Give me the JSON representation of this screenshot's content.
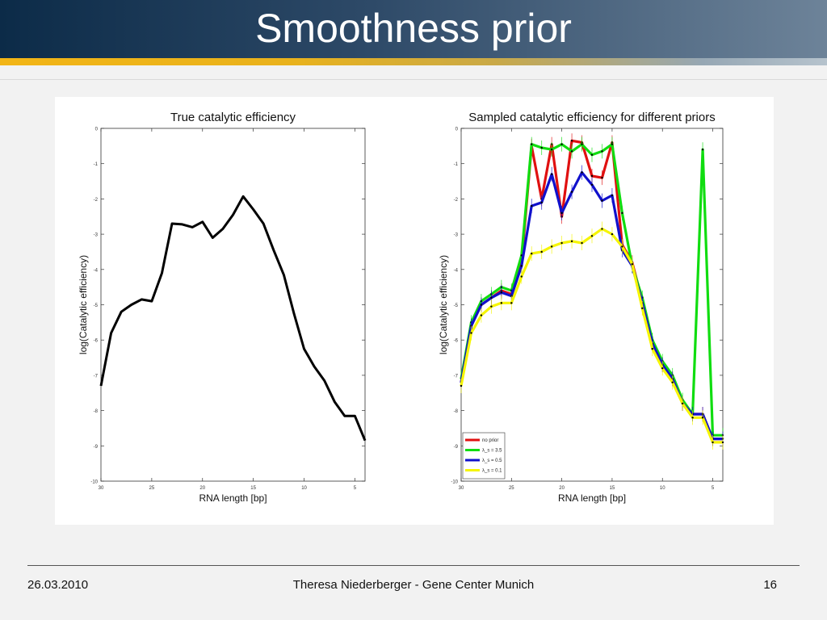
{
  "slide": {
    "title": "Smoothness prior",
    "footer": {
      "date": "26.03.2010",
      "author": "Theresa Niederberger - Gene Center Munich",
      "page": "16"
    }
  },
  "colors": {
    "no_prior": "#e01010",
    "lambda_35": "#10dd10",
    "lambda_05": "#1010cc",
    "lambda_01": "#f5f500",
    "true_line": "#000000"
  },
  "chart_data": [
    {
      "type": "line",
      "title": "True catalytic efficiency",
      "xlabel": "RNA length [bp]",
      "ylabel": "log(Catalytic efficiency)",
      "xlim": [
        30,
        4
      ],
      "ylim": [
        -10,
        0
      ],
      "x_reversed": true,
      "xticks": [
        30,
        25,
        20,
        15,
        10,
        5
      ],
      "yticks": [
        0,
        -1,
        -2,
        -3,
        -4,
        -5,
        -6,
        -7,
        -8,
        -9,
        -10
      ],
      "grid": false,
      "x": [
        30,
        29,
        28,
        27,
        26,
        25,
        24,
        23,
        22,
        21,
        20,
        19,
        18,
        17,
        16,
        15,
        14,
        13,
        12,
        11,
        10,
        9,
        8,
        7,
        6,
        5,
        4
      ],
      "series": [
        {
          "name": "",
          "color": "#000000",
          "values": [
            -7.3,
            -5.8,
            -5.2,
            -5.0,
            -4.85,
            -4.9,
            -4.1,
            -2.7,
            -2.72,
            -2.8,
            -2.65,
            -3.1,
            -2.85,
            -2.45,
            -1.93,
            -2.3,
            -2.7,
            -3.45,
            -4.15,
            -5.25,
            -6.25,
            -6.75,
            -7.15,
            -7.75,
            -8.15,
            -8.15,
            -8.85
          ]
        }
      ]
    },
    {
      "type": "line",
      "title": "Sampled catalytic efficiency for different priors",
      "xlabel": "RNA length [bp]",
      "ylabel": "log(Catalytic efficiency)",
      "xlim": [
        30,
        4
      ],
      "ylim": [
        -10,
        0
      ],
      "x_reversed": true,
      "xticks": [
        30,
        25,
        20,
        15,
        10,
        5
      ],
      "yticks": [
        0,
        -1,
        -2,
        -3,
        -4,
        -5,
        -6,
        -7,
        -8,
        -9,
        -10
      ],
      "grid": false,
      "legend_position": "bottom-left",
      "x": [
        30,
        29,
        28,
        27,
        26,
        25,
        24,
        23,
        22,
        21,
        20,
        19,
        18,
        17,
        16,
        15,
        14,
        13,
        12,
        11,
        10,
        9,
        8,
        7,
        6,
        5,
        4
      ],
      "series": [
        {
          "name": "no prior",
          "color": "#e01010",
          "values": [
            -7.2,
            -5.6,
            -5.0,
            -4.8,
            -4.6,
            -4.7,
            -3.8,
            -0.5,
            -2.0,
            -0.45,
            -2.5,
            -0.35,
            -0.4,
            -1.35,
            -1.4,
            -0.4,
            -3.3,
            -3.8,
            -4.9,
            -6.1,
            -6.7,
            -7.1,
            -7.8,
            -8.1,
            -8.1,
            -8.8,
            -8.8
          ]
        },
        {
          "name": "λ_s = 3.5",
          "color": "#10dd10",
          "values": [
            -7.1,
            -5.5,
            -4.9,
            -4.7,
            -4.5,
            -4.6,
            -3.6,
            -0.45,
            -0.55,
            -0.6,
            -0.45,
            -0.65,
            -0.45,
            -0.75,
            -0.65,
            -0.45,
            -2.4,
            -3.9,
            -4.8,
            -6.0,
            -6.6,
            -7.0,
            -7.7,
            -8.1,
            -0.6,
            -8.7,
            -8.7
          ]
        },
        {
          "name": "λ_s = 0.5",
          "color": "#1010cc",
          "values": [
            -7.2,
            -5.6,
            -5.0,
            -4.8,
            -4.65,
            -4.75,
            -3.9,
            -2.2,
            -2.1,
            -1.3,
            -2.4,
            -1.8,
            -1.25,
            -1.6,
            -2.05,
            -1.9,
            -3.45,
            -3.9,
            -4.95,
            -6.1,
            -6.7,
            -7.1,
            -7.8,
            -8.1,
            -8.1,
            -8.8,
            -8.8
          ]
        },
        {
          "name": "λ_s = 0.1",
          "color": "#f5f500",
          "values": [
            -7.3,
            -5.8,
            -5.3,
            -5.05,
            -4.95,
            -4.95,
            -4.2,
            -3.55,
            -3.5,
            -3.35,
            -3.25,
            -3.2,
            -3.25,
            -3.05,
            -2.85,
            -3.0,
            -3.35,
            -3.85,
            -5.1,
            -6.25,
            -6.8,
            -7.2,
            -7.8,
            -8.2,
            -8.2,
            -8.9,
            -8.9
          ]
        }
      ]
    }
  ]
}
